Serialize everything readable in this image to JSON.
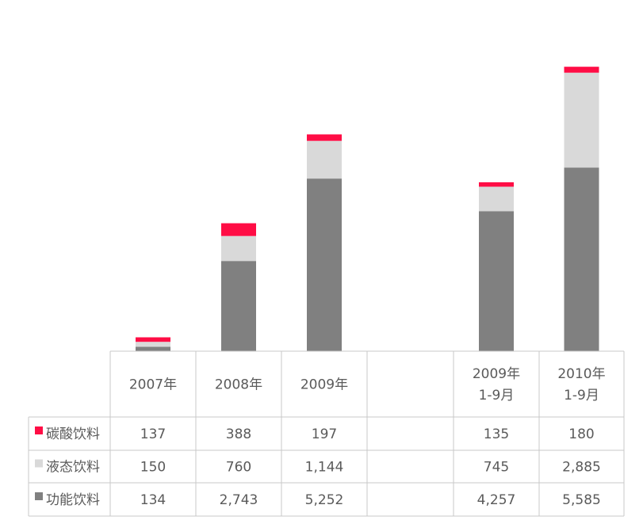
{
  "chart_data": {
    "type": "bar",
    "stacked": true,
    "categories": [
      {
        "lines": [
          "2007年"
        ]
      },
      {
        "lines": [
          "2008年"
        ]
      },
      {
        "lines": [
          "2009年"
        ]
      },
      {
        "lines": []
      },
      {
        "lines": [
          "2009年",
          "1-9月"
        ]
      },
      {
        "lines": [
          "2010年",
          "1-9月"
        ]
      }
    ],
    "series": [
      {
        "name": "功能饮料",
        "color": "#808080",
        "values": [
          134,
          2743,
          5252,
          null,
          4257,
          5585
        ],
        "labels": [
          "134",
          "2,743",
          "5,252",
          "",
          "4,257",
          "5,585"
        ]
      },
      {
        "name": "液态饮料",
        "color": "#d9d9d9",
        "values": [
          150,
          760,
          1144,
          null,
          745,
          2885
        ],
        "labels": [
          "150",
          "760",
          "1,144",
          "",
          "745",
          "2,885"
        ]
      },
      {
        "name": "碳酸饮料",
        "color": "#ff0d45",
        "values": [
          137,
          388,
          197,
          null,
          135,
          180
        ],
        "labels": [
          "137",
          "388",
          "197",
          "",
          "135",
          "180"
        ]
      }
    ],
    "table_row_order": [
      "碳酸饮料",
      "液态饮料",
      "功能饮料"
    ],
    "ylim": [
      0,
      8800
    ],
    "grid": false,
    "legend": "data-table"
  }
}
